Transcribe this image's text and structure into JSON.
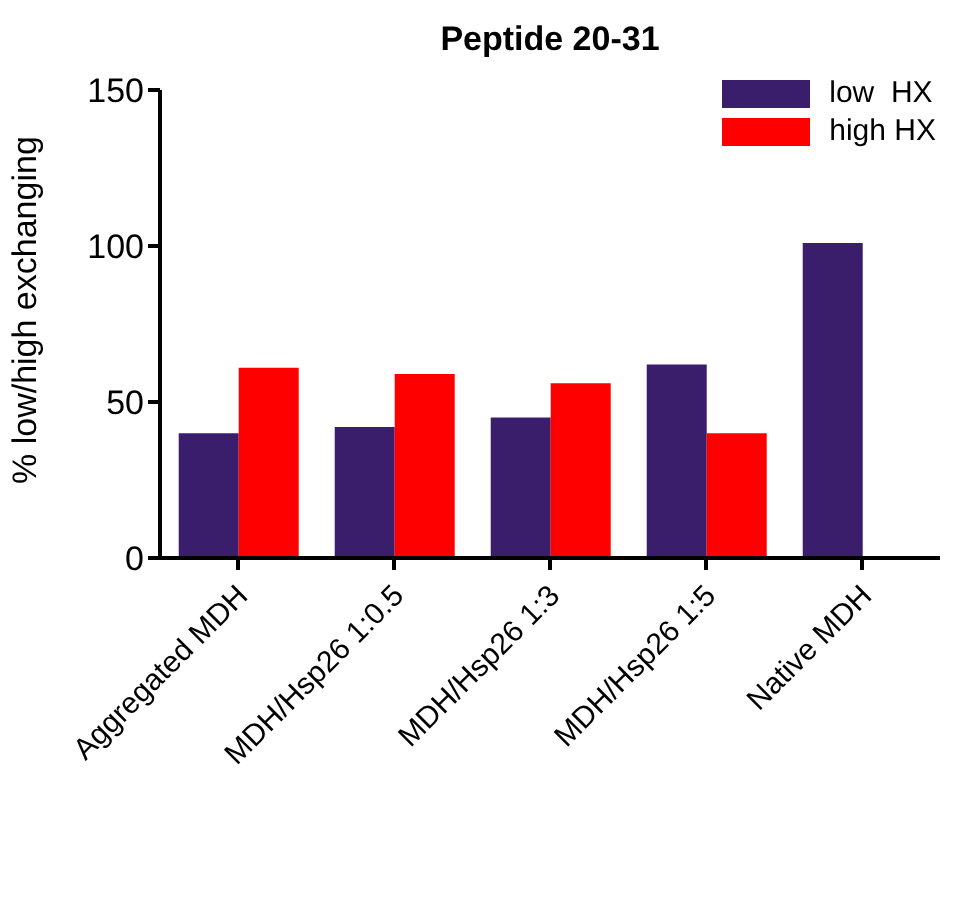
{
  "chart_data": {
    "type": "bar",
    "title": "Peptide 20-31",
    "ylabel": "% low/high exchanging",
    "categories": [
      "Aggregated MDH",
      "MDH/Hsp26 1:0.5",
      "MDH/Hsp26 1:3",
      "MDH/Hsp26 1:5",
      "Native MDH"
    ],
    "series": [
      {
        "name": "low  HX",
        "color": "#3a1e6b",
        "values": [
          40,
          42,
          45,
          62,
          101
        ]
      },
      {
        "name": "high HX",
        "color": "#ff0000",
        "values": [
          61,
          59,
          56,
          40,
          null
        ]
      }
    ],
    "ylim": [
      0,
      150
    ],
    "yticks": [
      0,
      50,
      100,
      150
    ],
    "grid": false,
    "legend": "top right"
  }
}
